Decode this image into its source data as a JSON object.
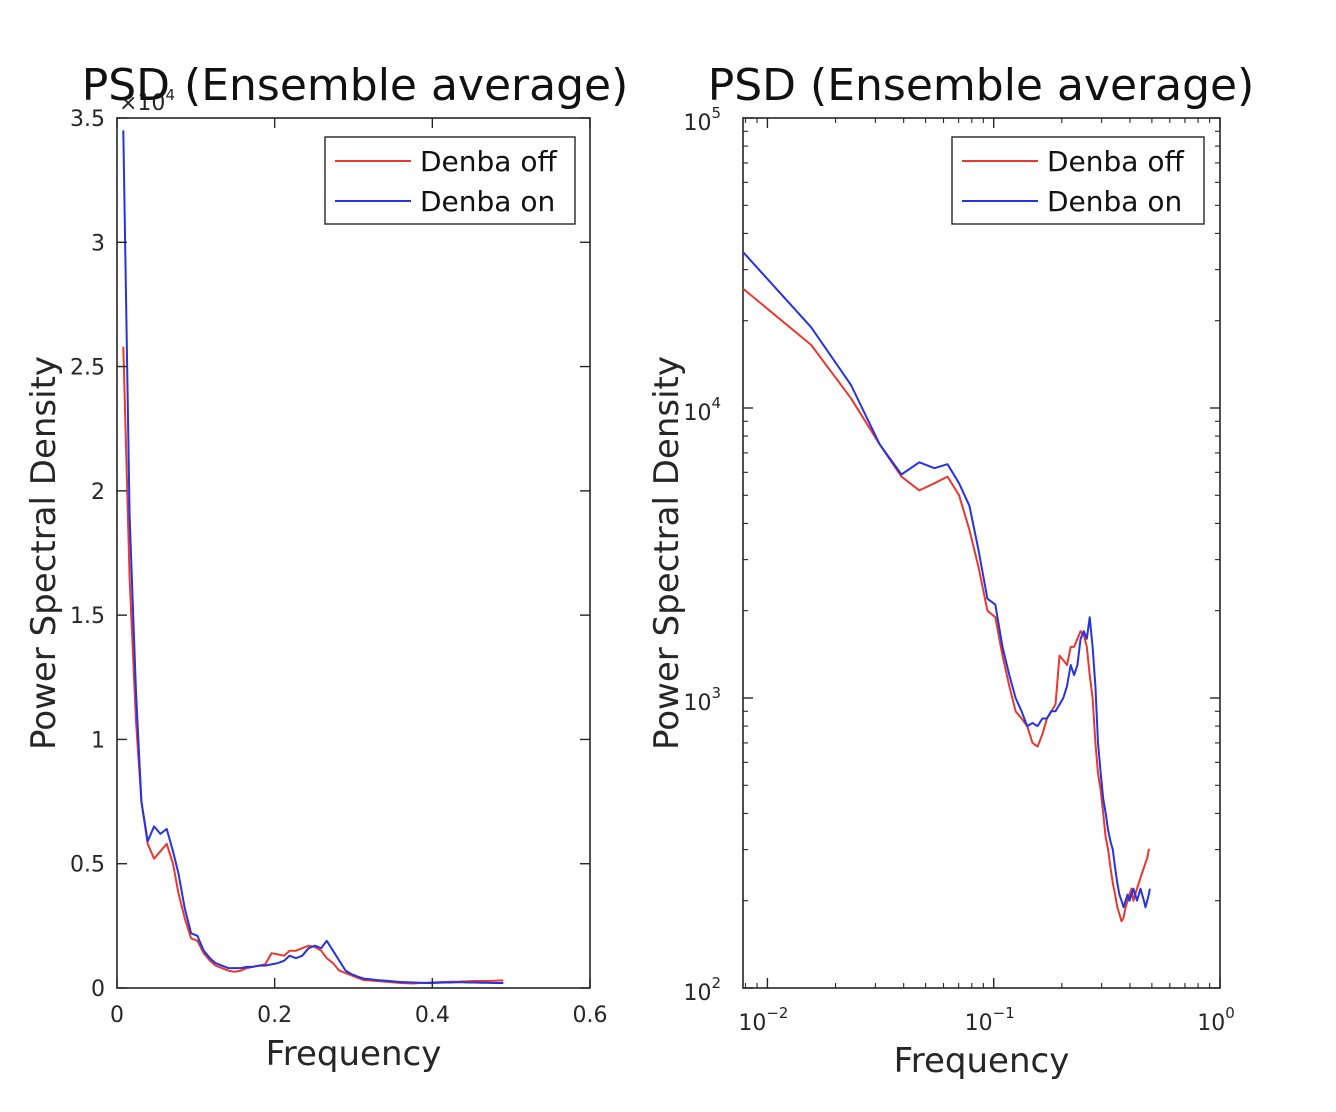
{
  "chart_data": [
    {
      "type": "line",
      "title": "PSD (Ensemble average)",
      "xlabel": "Frequency",
      "ylabel": "Power Spectral Density",
      "xlim": [
        0,
        0.6
      ],
      "ylim": [
        0,
        3.5
      ],
      "y_multiplier": "×10",
      "y_multiplier_exp": "4",
      "xscale": "linear",
      "yscale": "linear",
      "x_ticks": [
        0,
        0.2,
        0.4,
        0.6
      ],
      "x_tick_labels": [
        "0",
        "0.2",
        "0.4",
        "0.6"
      ],
      "y_ticks": [
        0,
        0.5,
        1,
        1.5,
        2,
        2.5,
        3,
        3.5
      ],
      "y_tick_labels": [
        "0",
        "0.5",
        "1",
        "1.5",
        "2",
        "2.5",
        "3",
        "3.5"
      ],
      "grid": false,
      "legend_position": "top-right",
      "series": [
        {
          "name": "Denba off",
          "color": "#e8382f",
          "x": [
            0.008,
            0.016,
            0.024,
            0.031,
            0.039,
            0.047,
            0.055,
            0.063,
            0.071,
            0.078,
            0.086,
            0.094,
            0.102,
            0.11,
            0.118,
            0.125,
            0.133,
            0.141,
            0.149,
            0.157,
            0.165,
            0.172,
            0.18,
            0.188,
            0.196,
            0.204,
            0.212,
            0.219,
            0.227,
            0.235,
            0.243,
            0.251,
            0.259,
            0.266,
            0.274,
            0.282,
            0.29,
            0.298,
            0.306,
            0.313,
            0.321,
            0.329,
            0.337,
            0.345,
            0.352,
            0.36,
            0.368,
            0.376,
            0.384,
            0.392,
            0.399,
            0.407,
            0.415,
            0.423,
            0.431,
            0.438,
            0.446,
            0.454,
            0.462,
            0.47,
            0.478,
            0.485,
            0.49
          ],
          "values": [
            25800,
            16500,
            10800,
            7500,
            5800,
            5200,
            5500,
            5800,
            5000,
            3800,
            2800,
            2000,
            1900,
            1400,
            1100,
            900,
            800,
            700,
            650,
            700,
            800,
            850,
            900,
            950,
            1400,
            1350,
            1300,
            1500,
            1500,
            1600,
            1700,
            1650,
            1500,
            1200,
            1000,
            700,
            600,
            500,
            400,
            320,
            300,
            280,
            260,
            240,
            220,
            200,
            190,
            180,
            200,
            210,
            220,
            230,
            240,
            250,
            250,
            260,
            270,
            280,
            280,
            280,
            290,
            300,
            300
          ]
        },
        {
          "name": "Denba on",
          "color": "#2633e0",
          "x": [
            0.008,
            0.016,
            0.024,
            0.031,
            0.039,
            0.047,
            0.055,
            0.063,
            0.071,
            0.078,
            0.086,
            0.094,
            0.102,
            0.11,
            0.118,
            0.125,
            0.133,
            0.141,
            0.149,
            0.157,
            0.165,
            0.172,
            0.18,
            0.188,
            0.196,
            0.204,
            0.212,
            0.219,
            0.227,
            0.235,
            0.243,
            0.251,
            0.259,
            0.266,
            0.274,
            0.282,
            0.29,
            0.298,
            0.306,
            0.313,
            0.321,
            0.329,
            0.337,
            0.345,
            0.352,
            0.36,
            0.368,
            0.376,
            0.384,
            0.392,
            0.399,
            0.407,
            0.415,
            0.423,
            0.431,
            0.438,
            0.446,
            0.454,
            0.462,
            0.47,
            0.478,
            0.485,
            0.49
          ],
          "values": [
            34500,
            19000,
            12000,
            7500,
            5900,
            6500,
            6200,
            6400,
            5500,
            4600,
            3200,
            2200,
            2100,
            1500,
            1200,
            1000,
            900,
            800,
            800,
            800,
            850,
            850,
            900,
            900,
            950,
            1000,
            1100,
            1300,
            1200,
            1300,
            1600,
            1700,
            1600,
            1900,
            1500,
            1100,
            700,
            550,
            450,
            380,
            350,
            320,
            300,
            280,
            260,
            240,
            230,
            220,
            210,
            200,
            200,
            210,
            220,
            220,
            230,
            230,
            220,
            220,
            210,
            210,
            200,
            200,
            200
          ]
        }
      ]
    },
    {
      "type": "line",
      "title": "PSD (Ensemble average)",
      "xlabel": "Frequency",
      "ylabel": "Power Spectral Density",
      "xlim": [
        0.0078,
        1
      ],
      "ylim": [
        100,
        100000
      ],
      "xscale": "log",
      "yscale": "log",
      "x_ticks": [
        0.01,
        0.1,
        1
      ],
      "x_tick_base": "10",
      "x_tick_exps": [
        "−2",
        "−1",
        "0"
      ],
      "y_ticks": [
        100,
        1000,
        10000,
        100000
      ],
      "y_tick_base": "10",
      "y_tick_exps": [
        "2",
        "3",
        "4",
        "5"
      ],
      "grid": false,
      "legend_position": "top-right",
      "series": [
        {
          "name": "Denba off",
          "color": "#e8382f",
          "x": [
            0.0078,
            0.0156,
            0.0234,
            0.0313,
            0.0391,
            0.0469,
            0.0547,
            0.0625,
            0.0703,
            0.0781,
            0.0859,
            0.0938,
            0.1016,
            0.1094,
            0.1172,
            0.125,
            0.1328,
            0.1406,
            0.1484,
            0.1563,
            0.1641,
            0.1719,
            0.1797,
            0.1875,
            0.1953,
            0.2031,
            0.2109,
            0.2188,
            0.2266,
            0.2344,
            0.2422,
            0.25,
            0.2578,
            0.2656,
            0.2734,
            0.2813,
            0.2891,
            0.2969,
            0.3047,
            0.3125,
            0.3203,
            0.3281,
            0.3359,
            0.3438,
            0.3516,
            0.3594,
            0.3672,
            0.375,
            0.3828,
            0.3906,
            0.3984,
            0.4063,
            0.4141,
            0.4219,
            0.4297,
            0.4375,
            0.4453,
            0.4531,
            0.4609,
            0.4688,
            0.4766,
            0.4844,
            0.4902
          ],
          "values": [
            25800,
            16500,
            10800,
            7500,
            5800,
            5200,
            5500,
            5800,
            5000,
            3800,
            2800,
            2000,
            1900,
            1400,
            1100,
            900,
            850,
            800,
            700,
            680,
            750,
            850,
            900,
            950,
            1400,
            1350,
            1300,
            1500,
            1500,
            1600,
            1700,
            1650,
            1500,
            1200,
            1000,
            700,
            550,
            480,
            400,
            330,
            300,
            260,
            230,
            210,
            190,
            180,
            170,
            175,
            190,
            200,
            210,
            220,
            200,
            210,
            220,
            230,
            240,
            250,
            260,
            270,
            280,
            300,
            300
          ]
        },
        {
          "name": "Denba on",
          "color": "#2633e0",
          "x": [
            0.0078,
            0.0156,
            0.0234,
            0.0313,
            0.0391,
            0.0469,
            0.0547,
            0.0625,
            0.0703,
            0.0781,
            0.0859,
            0.0938,
            0.1016,
            0.1094,
            0.1172,
            0.125,
            0.1328,
            0.1406,
            0.1484,
            0.1563,
            0.1641,
            0.1719,
            0.1797,
            0.1875,
            0.1953,
            0.2031,
            0.2109,
            0.2188,
            0.2266,
            0.2344,
            0.2422,
            0.25,
            0.2578,
            0.2656,
            0.2734,
            0.2813,
            0.2891,
            0.2969,
            0.3047,
            0.3125,
            0.3203,
            0.3281,
            0.3359,
            0.3438,
            0.3516,
            0.3594,
            0.3672,
            0.375,
            0.3828,
            0.3906,
            0.3984,
            0.4063,
            0.4141,
            0.4219,
            0.4297,
            0.4375,
            0.4453,
            0.4531,
            0.4609,
            0.4688,
            0.4766,
            0.4844,
            0.4902
          ],
          "values": [
            34500,
            19000,
            12000,
            7500,
            5900,
            6500,
            6200,
            6400,
            5500,
            4600,
            3200,
            2200,
            2100,
            1500,
            1200,
            1000,
            900,
            800,
            820,
            800,
            850,
            850,
            900,
            900,
            950,
            1000,
            1100,
            1300,
            1200,
            1300,
            1600,
            1700,
            1600,
            1900,
            1500,
            1100,
            700,
            550,
            450,
            400,
            350,
            320,
            300,
            260,
            230,
            210,
            200,
            190,
            200,
            210,
            200,
            210,
            220,
            210,
            200,
            210,
            220,
            210,
            200,
            190,
            200,
            210,
            220
          ]
        }
      ]
    }
  ]
}
